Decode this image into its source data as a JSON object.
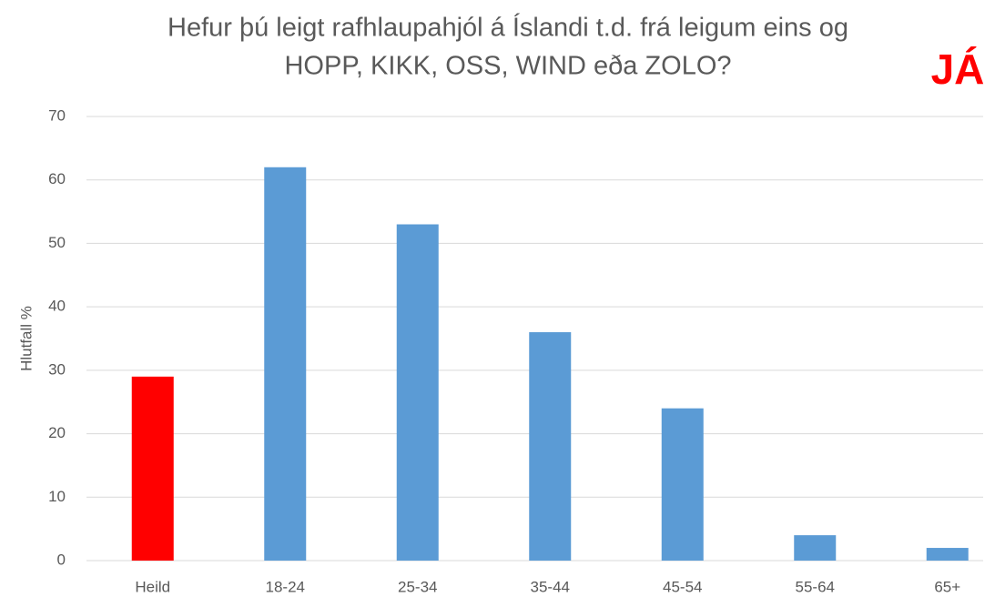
{
  "chart_data": {
    "type": "bar",
    "title": [
      "Hefur þú leigt rafhlaupahjól á Íslandi t.d. frá leigum eins og",
      "HOPP, KIKK, OSS, WIND eða ZOLO?"
    ],
    "annotation": "JÁ",
    "y_label": "Hlutfall %",
    "categories": [
      "Heild",
      "18-24",
      "25-34",
      "35-44",
      "45-54",
      "55-64",
      "65+"
    ],
    "values": [
      29,
      62,
      53,
      36,
      24,
      4,
      2
    ],
    "colors": [
      "#ff0000",
      "#5b9bd5",
      "#5b9bd5",
      "#5b9bd5",
      "#5b9bd5",
      "#5b9bd5",
      "#5b9bd5"
    ],
    "ylim": [
      0,
      70
    ],
    "yticks": [
      0,
      10,
      20,
      30,
      40,
      50,
      60,
      70
    ],
    "grid": true
  }
}
